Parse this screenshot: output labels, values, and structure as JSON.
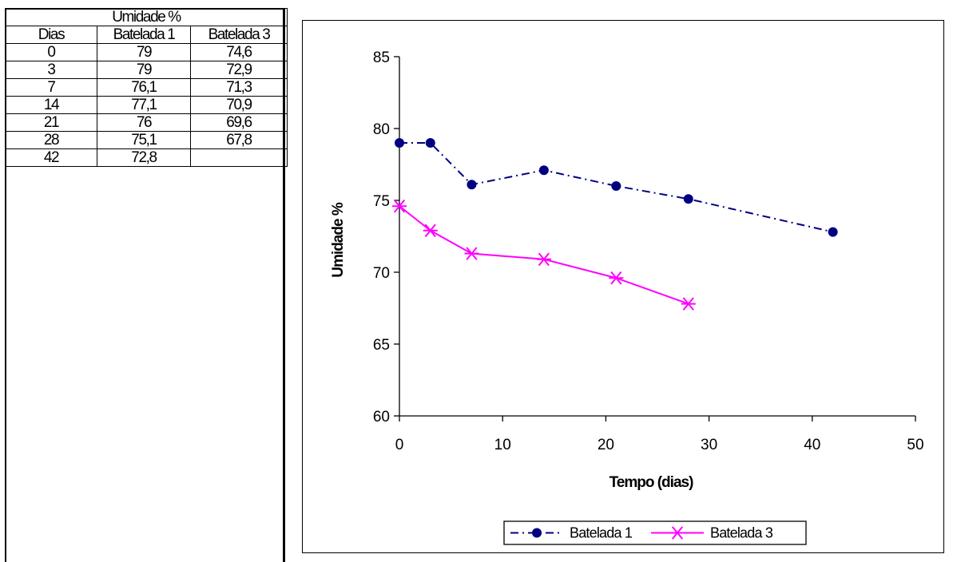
{
  "table": {
    "title": "Umidade %",
    "headers": [
      "Dias",
      "Batelada 1",
      "Batelada 3"
    ],
    "rows": [
      [
        "0",
        "79",
        "74,6"
      ],
      [
        "3",
        "79",
        "72,9"
      ],
      [
        "7",
        "76,1",
        "71,3"
      ],
      [
        "14",
        "77,1",
        "70,9"
      ],
      [
        "21",
        "76",
        "69,6"
      ],
      [
        "28",
        "75,1",
        "67,8"
      ],
      [
        "42",
        "72,8",
        ""
      ]
    ]
  },
  "chart_data": {
    "type": "line",
    "xlabel": "Tempo (dias)",
    "ylabel": "Umidade %",
    "xlim": [
      0,
      50
    ],
    "ylim": [
      60,
      85
    ],
    "xticks": [
      0,
      10,
      20,
      30,
      40,
      50
    ],
    "yticks": [
      60,
      65,
      70,
      75,
      80,
      85
    ],
    "grid": false,
    "legend_position": "bottom-center",
    "series": [
      {
        "name": "Batelada 1",
        "color": "#000080",
        "line_style": "dash-dot",
        "marker": "circle",
        "x": [
          0,
          3,
          7,
          14,
          21,
          28,
          42
        ],
        "y": [
          79,
          79,
          76.1,
          77.1,
          76,
          75.1,
          72.8
        ]
      },
      {
        "name": "Batelada 3",
        "color": "#ff00ff",
        "line_style": "solid",
        "marker": "asterisk",
        "x": [
          0,
          3,
          7,
          14,
          21,
          28
        ],
        "y": [
          74.6,
          72.9,
          71.3,
          70.9,
          69.6,
          67.8
        ]
      }
    ]
  }
}
